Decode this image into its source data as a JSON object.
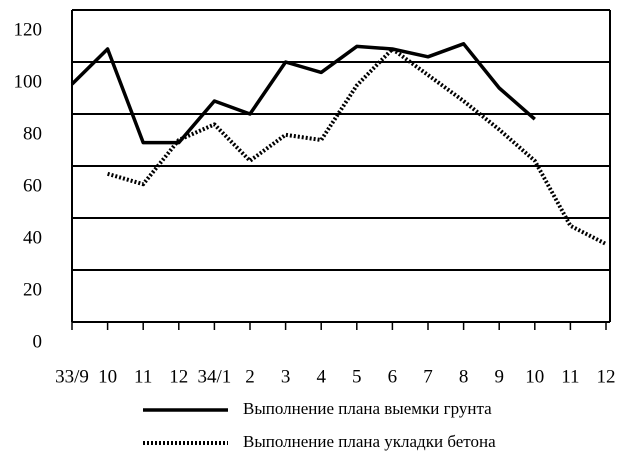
{
  "chart_data": {
    "type": "line",
    "categories": [
      "33/9",
      "10",
      "11",
      "12",
      "34/1",
      "2",
      "3",
      "4",
      "5",
      "6",
      "7",
      "8",
      "9",
      "10",
      "11",
      "12"
    ],
    "series": [
      {
        "name": "Выполнение плана выемки грунта",
        "color": "#000000",
        "style": "solid",
        "values": [
          91.5,
          105,
          69,
          69,
          85,
          80,
          100,
          96,
          106,
          105,
          102,
          107,
          90,
          78,
          null,
          null
        ]
      },
      {
        "name": "Выполнение плана укладки бетона",
        "color": "#000000",
        "style": "dotted",
        "values": [
          null,
          57,
          53,
          70,
          76,
          62,
          72,
          70,
          91,
          105,
          95,
          85,
          74,
          62,
          37,
          30
        ]
      }
    ],
    "ylim": [
      0,
      120
    ],
    "yticks": [
      0,
      20,
      40,
      60,
      80,
      100,
      120
    ],
    "grid": true
  }
}
